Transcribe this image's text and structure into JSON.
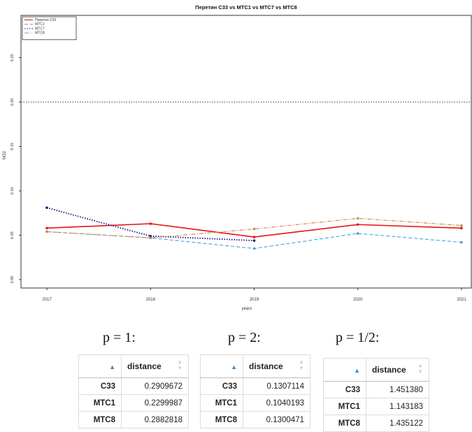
{
  "chart_data": {
    "type": "line",
    "title": "Перетин С33 vs МТС1 vs МТС7 vs МТС8",
    "xlabel": "years",
    "ylabel": "NO2",
    "x": [
      2017,
      2018,
      2019,
      2020,
      2021
    ],
    "xlim": [
      2017,
      2021
    ],
    "ylim": [
      -0.01,
      0.285
    ],
    "y_ticks": [
      "0.00",
      "0.05",
      "0.10",
      "0.15",
      "0.20",
      "0.25"
    ],
    "x_ticks": [
      "2017",
      "2018",
      "2019",
      "2020",
      "2021"
    ],
    "reference_line": {
      "y": 0.2,
      "color": "#333333",
      "style": "dotted"
    },
    "legend_position": "top-left",
    "grid": false,
    "series": [
      {
        "name": "Перетин С33",
        "color": "#e41414",
        "style": "solid",
        "values": [
          0.058,
          0.063,
          0.048,
          0.062,
          0.058
        ]
      },
      {
        "name": "МТС1",
        "color": "#4a9ee0",
        "style": "dashed",
        "values": [
          0.054,
          0.047,
          0.035,
          0.052,
          0.042
        ]
      },
      {
        "name": "МТС7",
        "color": "#11118a",
        "style": "dotted",
        "values": [
          0.081,
          0.049,
          0.044,
          null,
          null
        ]
      },
      {
        "name": "МТС8",
        "color": "#c98a4b",
        "style": "dashdot",
        "values": [
          0.054,
          0.047,
          0.057,
          0.069,
          0.061
        ]
      }
    ]
  },
  "p_labels": [
    "p = 1:",
    "p = 2:",
    "p = 1/2:"
  ],
  "tables": [
    {
      "header": "distance",
      "rows": [
        {
          "name": "С33",
          "value": "0.2909672"
        },
        {
          "name": "МТС1",
          "value": "0.2299987"
        },
        {
          "name": "МТС8",
          "value": "0.2882818"
        }
      ]
    },
    {
      "header": "distance",
      "rows": [
        {
          "name": "С33",
          "value": "0.1307114"
        },
        {
          "name": "МТС1",
          "value": "0.1040193"
        },
        {
          "name": "МТС8",
          "value": "0.1300471"
        }
      ]
    },
    {
      "header": "distance",
      "rows": [
        {
          "name": "С33",
          "value": "1.451380"
        },
        {
          "name": "МТС1",
          "value": "1.143183"
        },
        {
          "name": "МТС8",
          "value": "1.435122"
        }
      ]
    }
  ],
  "sort_icons": {
    "active": "sort-ascending-icon",
    "inactive": "sort-both-icon"
  }
}
